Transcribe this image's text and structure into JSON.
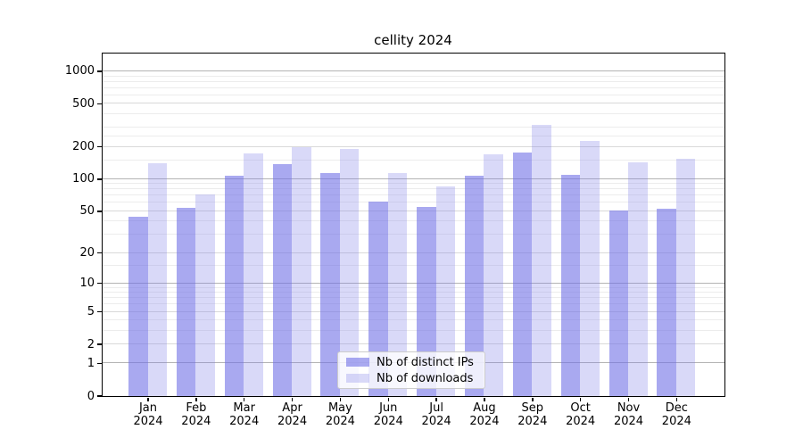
{
  "chart_data": {
    "type": "bar",
    "title": "cellity 2024",
    "categories": [
      "Jan",
      "Feb",
      "Mar",
      "Apr",
      "May",
      "Jun",
      "Jul",
      "Aug",
      "Sep",
      "Oct",
      "Nov",
      "Dec"
    ],
    "x_tick_year": "2024",
    "series": [
      {
        "name": "Nb of distinct IPs",
        "color": "rgba(112,112,230,0.6)",
        "values": [
          44,
          53,
          106,
          138,
          113,
          61,
          54,
          106,
          176,
          108,
          50,
          52
        ]
      },
      {
        "name": "Nb of downloads",
        "color": "rgba(128,128,232,0.3)",
        "values": [
          140,
          71,
          172,
          198,
          189,
          113,
          85,
          170,
          315,
          224,
          143,
          154
        ]
      }
    ],
    "yscale": "log1p",
    "ylim": [
      0,
      1462
    ],
    "y_ticks": [
      0,
      1,
      2,
      5,
      10,
      20,
      50,
      100,
      200,
      500,
      1000
    ],
    "y_minor_ticks": [
      3,
      4,
      6,
      7,
      8,
      9,
      15,
      30,
      40,
      60,
      70,
      80,
      90,
      150,
      250,
      300,
      400,
      600,
      700,
      800,
      900
    ],
    "grid": true,
    "legend_position": "lower center",
    "colors": {
      "grid_power10": "#b4b4b4",
      "grid_major": "#d9d9d9",
      "grid_minor": "#ececec",
      "frame": "#000000",
      "background": "#ffffff"
    }
  }
}
